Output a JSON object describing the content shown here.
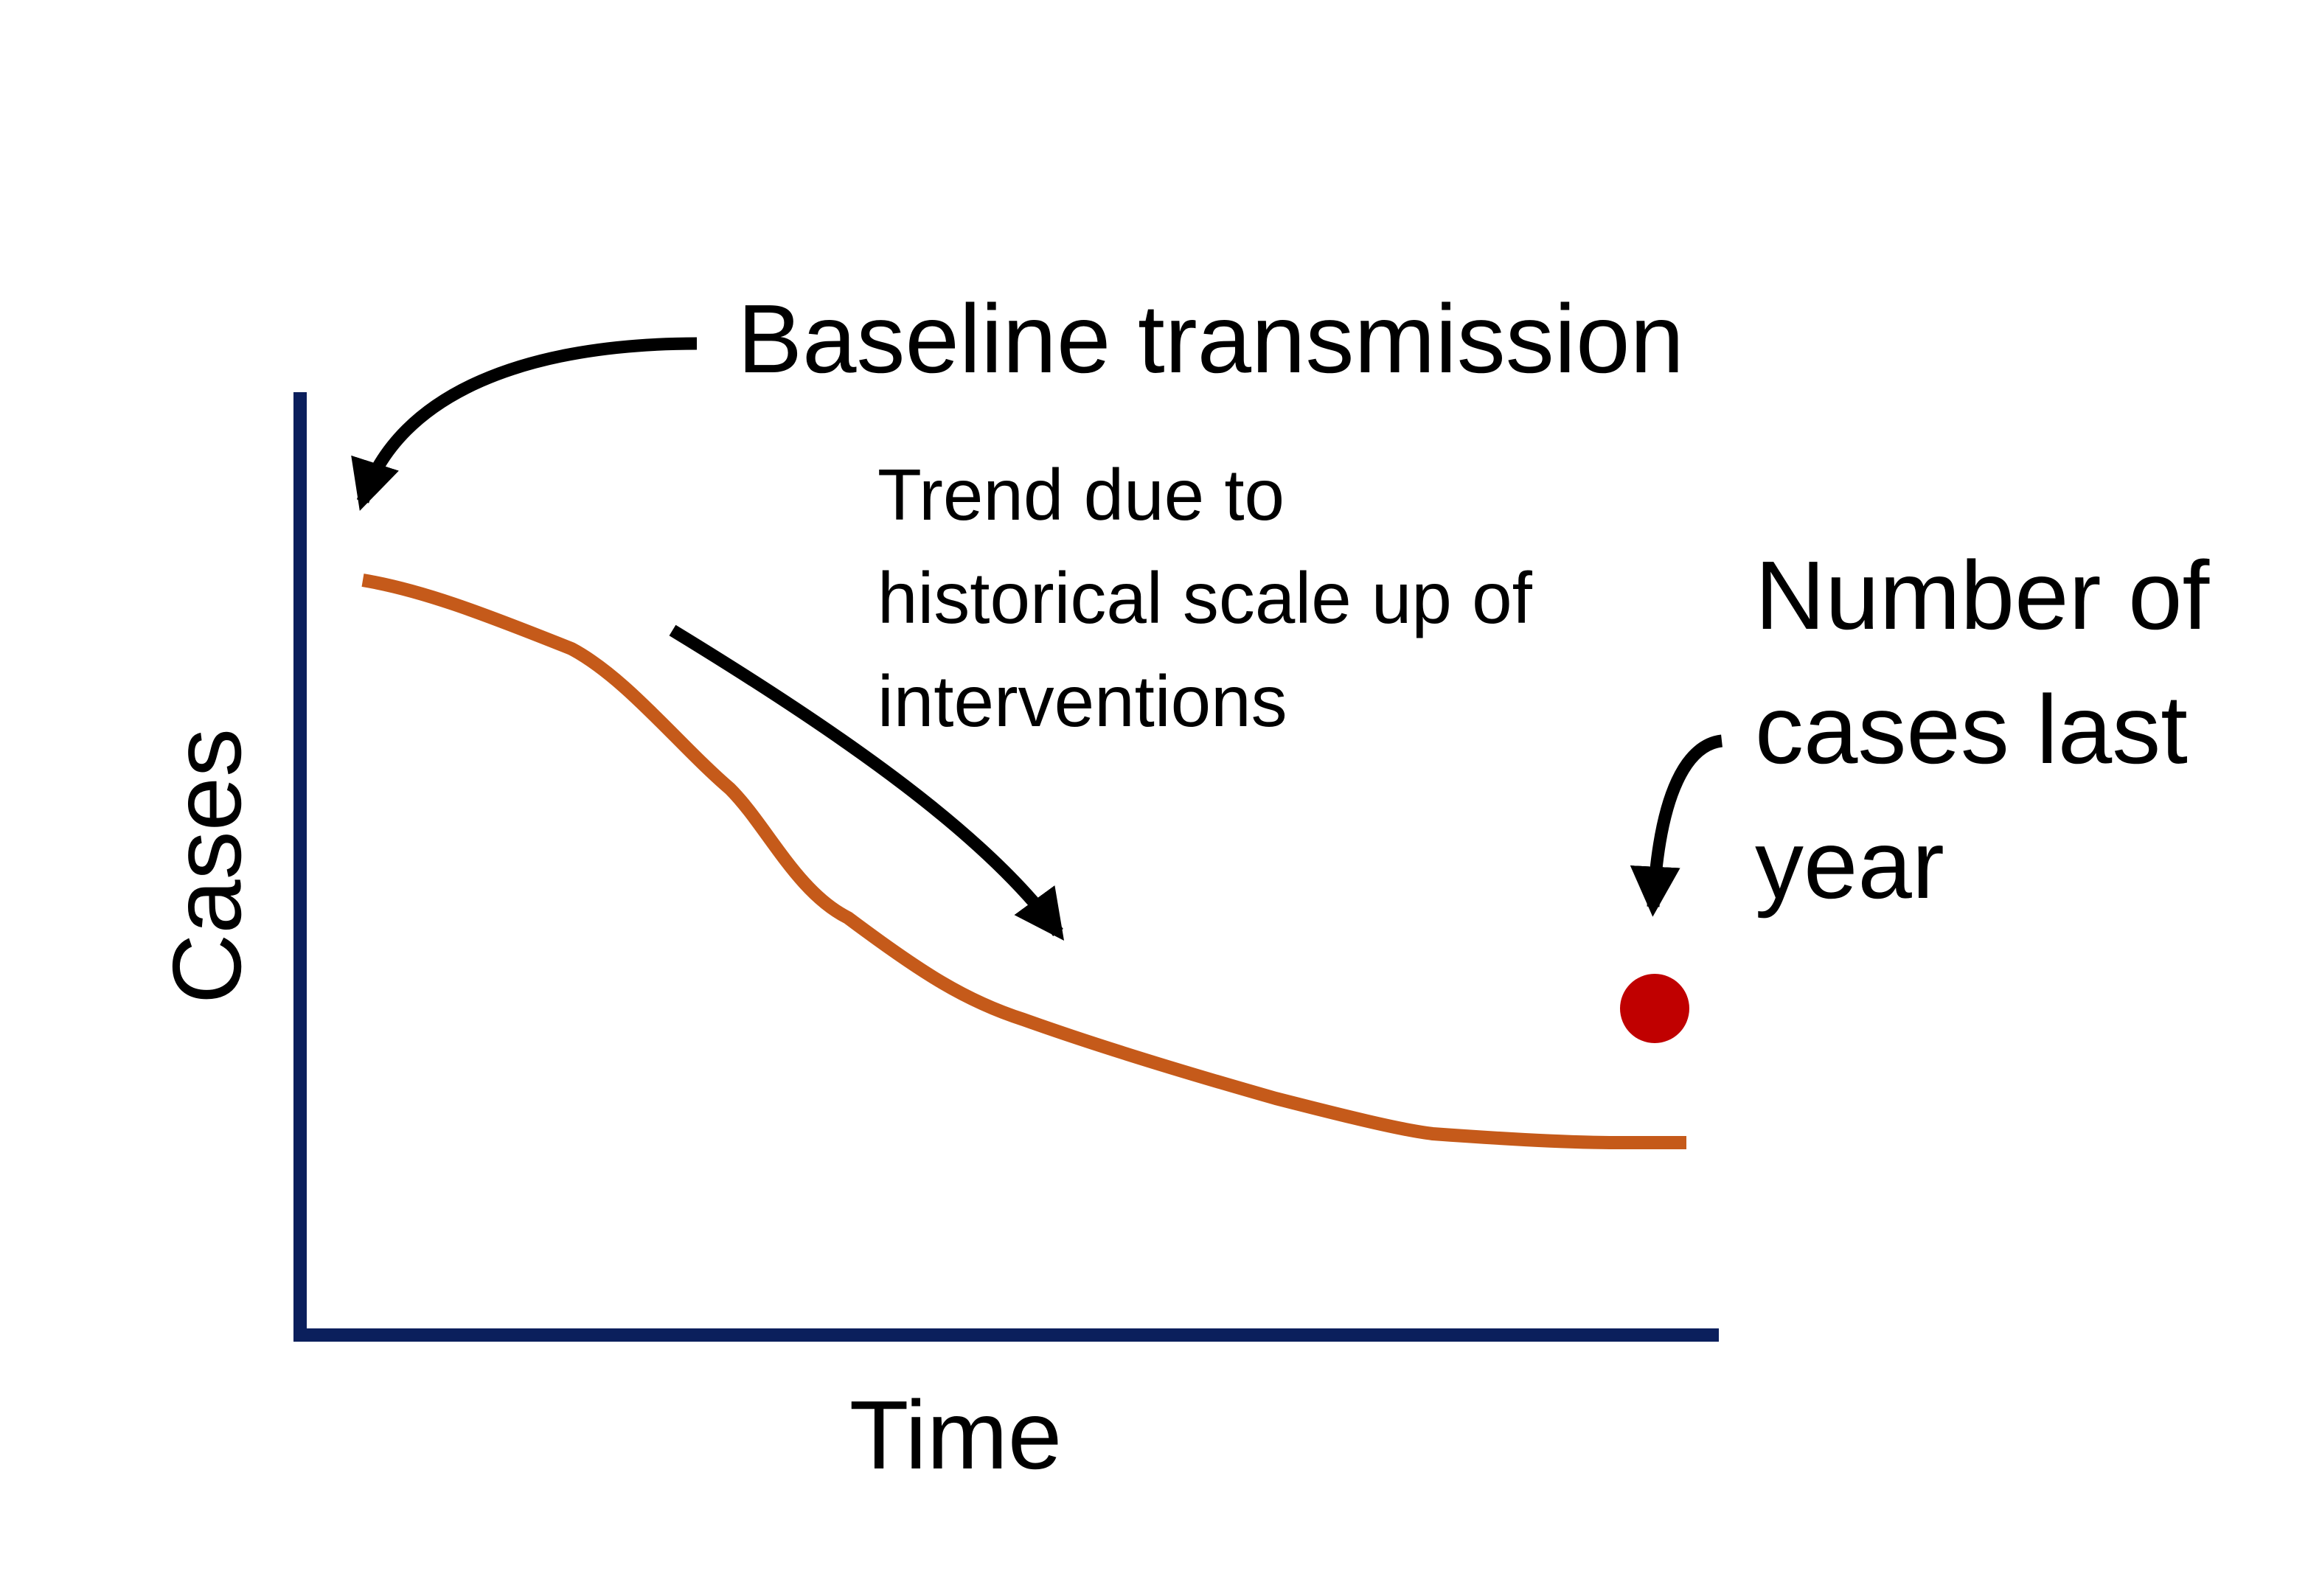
{
  "axes": {
    "x_label": "Time",
    "y_label": "Cases",
    "color": "#0b1f5c"
  },
  "annotations": {
    "baseline": "Baseline transmission",
    "trend": [
      "Trend due to",
      "historical scale up of",
      "interventions"
    ],
    "last_year": [
      "Number of",
      "cases last",
      "year"
    ]
  },
  "colors": {
    "trend_line": "#c55a1a",
    "last_year_point": "#c00000",
    "arrows": "#000000"
  }
}
